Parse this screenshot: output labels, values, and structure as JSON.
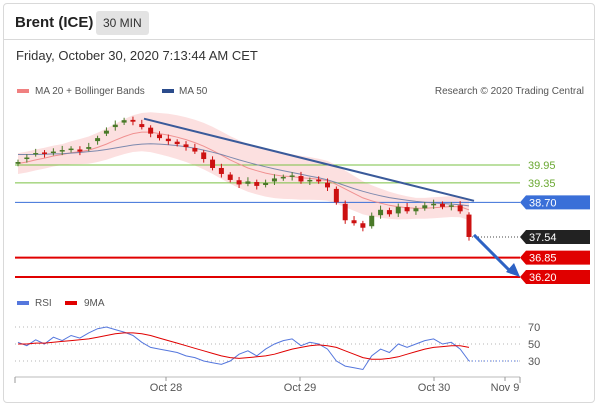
{
  "header": {
    "title": "Brent (ICE)",
    "timeframe": "30 MIN",
    "timestamp": "Friday, October 30, 2020 7:13:44 AM CET"
  },
  "legend": {
    "bollinger": {
      "label": "MA 20 + Bollinger Bands",
      "color": "#f08080"
    },
    "ma50": {
      "label": "MA 50",
      "color": "#2b4c8c"
    },
    "source": "Research © 2020 Trading Central",
    "rsi": {
      "label": "RSI",
      "color": "#5577dd"
    },
    "rsi_ma": {
      "label": "9MA",
      "color": "#e00000"
    }
  },
  "colors": {
    "bull_candle": "#4a7a28",
    "bear_candle": "#cc1111",
    "support_red": "#e00000",
    "support_blue": "#3a6fd8",
    "resistance_green": "#7ac143",
    "trend": "#3a5a9a",
    "bands_fill": "#f9c6c6",
    "last_price_bg": "#222222"
  },
  "chart_data": [
    {
      "type": "line",
      "title": "",
      "y_axis": "right",
      "x_ticks": [
        "Oct 28",
        "Oct 29",
        "Oct 30",
        "Nov 9"
      ],
      "price_levels": [
        {
          "value": 39.95,
          "label": "39.95",
          "kind": "resistance",
          "style": "green-line"
        },
        {
          "value": 39.35,
          "label": "39.35",
          "kind": "resistance",
          "style": "green-line"
        },
        {
          "value": 38.7,
          "label": "38.70",
          "kind": "pivot",
          "style": "blue-line"
        },
        {
          "value": 37.54,
          "label": "37.54",
          "kind": "last",
          "style": "dotted"
        },
        {
          "value": 36.85,
          "label": "36.85",
          "kind": "support",
          "style": "red-line"
        },
        {
          "value": 36.2,
          "label": "36.20",
          "kind": "support",
          "style": "red-line"
        }
      ],
      "series": [
        {
          "name": "Brent (ICE)",
          "style": "candlestick",
          "close": [
            40.05,
            40.2,
            40.35,
            40.32,
            40.4,
            40.45,
            40.5,
            40.4,
            40.55,
            40.85,
            41.1,
            41.3,
            41.45,
            41.4,
            41.22,
            41.0,
            40.85,
            40.75,
            40.65,
            40.55,
            40.4,
            40.15,
            39.85,
            39.65,
            39.45,
            39.3,
            39.4,
            39.25,
            39.35,
            39.5,
            39.55,
            39.6,
            39.4,
            39.45,
            39.4,
            39.2,
            38.7,
            38.1,
            38.0,
            37.85,
            38.25,
            38.45,
            38.3,
            38.55,
            38.4,
            38.5,
            38.6,
            38.65,
            38.55,
            38.6,
            38.4,
            37.54
          ],
          "open_offsets": [
            -0.06,
            -0.05,
            -0.04,
            0.05,
            -0.05,
            -0.05,
            -0.05,
            0.07,
            -0.06,
            -0.1,
            -0.1,
            -0.08,
            -0.08,
            0.06,
            0.1,
            0.2,
            0.12,
            0.08,
            0.08,
            0.09,
            0.12,
            0.22,
            0.28,
            0.2,
            0.18,
            0.14,
            -0.08,
            0.13,
            -0.07,
            -0.1,
            -0.05,
            -0.05,
            0.18,
            -0.05,
            0.06,
            0.16,
            0.45,
            0.55,
            0.1,
            0.15,
            -0.35,
            -0.18,
            0.14,
            -0.22,
            0.14,
            -0.1,
            -0.1,
            -0.05,
            0.1,
            -0.05,
            0.2,
            0.75
          ]
        },
        {
          "name": "MA 20",
          "values": [
            40.0,
            40.05,
            40.12,
            40.18,
            40.25,
            40.3,
            40.36,
            40.4,
            40.45,
            40.54,
            40.65,
            40.78,
            40.9,
            41.0,
            41.05,
            41.05,
            41.0,
            40.95,
            40.88,
            40.8,
            40.7,
            40.58,
            40.44,
            40.28,
            40.12,
            39.98,
            39.85,
            39.76,
            39.68,
            39.62,
            39.58,
            39.56,
            39.52,
            39.5,
            39.47,
            39.42,
            39.3,
            39.15,
            39.0,
            38.85,
            38.75,
            38.67,
            38.6,
            38.55,
            38.52,
            38.5,
            38.5,
            38.52,
            38.54,
            38.56,
            38.55,
            38.45
          ]
        },
        {
          "name": "MA 50",
          "values": [
            40.3,
            40.3,
            40.3,
            40.31,
            40.32,
            40.33,
            40.35,
            40.37,
            40.4,
            40.43,
            40.47,
            40.52,
            40.57,
            40.62,
            40.65,
            40.66,
            40.65,
            40.63,
            40.6,
            40.56,
            40.51,
            40.45,
            40.38,
            40.3,
            40.21,
            40.12,
            40.04,
            39.96,
            39.89,
            39.82,
            39.76,
            39.7,
            39.64,
            39.58,
            39.52,
            39.45,
            39.36,
            39.26,
            39.16,
            39.07,
            38.99,
            38.92,
            38.86,
            38.81,
            38.77,
            38.73,
            38.7,
            38.68,
            38.66,
            38.64,
            38.62,
            38.58
          ]
        }
      ],
      "trendline_start": 41.5,
      "trendline_end": 38.75,
      "projection_target": 36.2
    },
    {
      "type": "line",
      "title": "",
      "y_ticks": [
        70,
        50,
        30
      ],
      "ylim": [
        20,
        80
      ],
      "series": [
        {
          "name": "RSI",
          "values": [
            52,
            48,
            55,
            50,
            58,
            54,
            60,
            57,
            63,
            68,
            70,
            67,
            64,
            60,
            52,
            46,
            44,
            42,
            40,
            36,
            34,
            30,
            28,
            26,
            30,
            38,
            42,
            36,
            44,
            50,
            54,
            56,
            48,
            52,
            50,
            44,
            30,
            24,
            22,
            20,
            36,
            44,
            40,
            50,
            46,
            50,
            54,
            56,
            50,
            52,
            44,
            30
          ]
        },
        {
          "name": "9MA",
          "values": [
            50,
            50,
            51,
            51,
            52,
            53,
            54,
            55,
            56,
            58,
            60,
            62,
            63,
            63,
            62,
            60,
            57,
            54,
            51,
            48,
            45,
            42,
            39,
            36,
            34,
            33,
            34,
            35,
            36,
            38,
            41,
            44,
            46,
            48,
            49,
            48,
            46,
            42,
            38,
            34,
            32,
            32,
            33,
            35,
            38,
            41,
            44,
            46,
            47,
            48,
            48,
            46
          ]
        }
      ]
    }
  ]
}
